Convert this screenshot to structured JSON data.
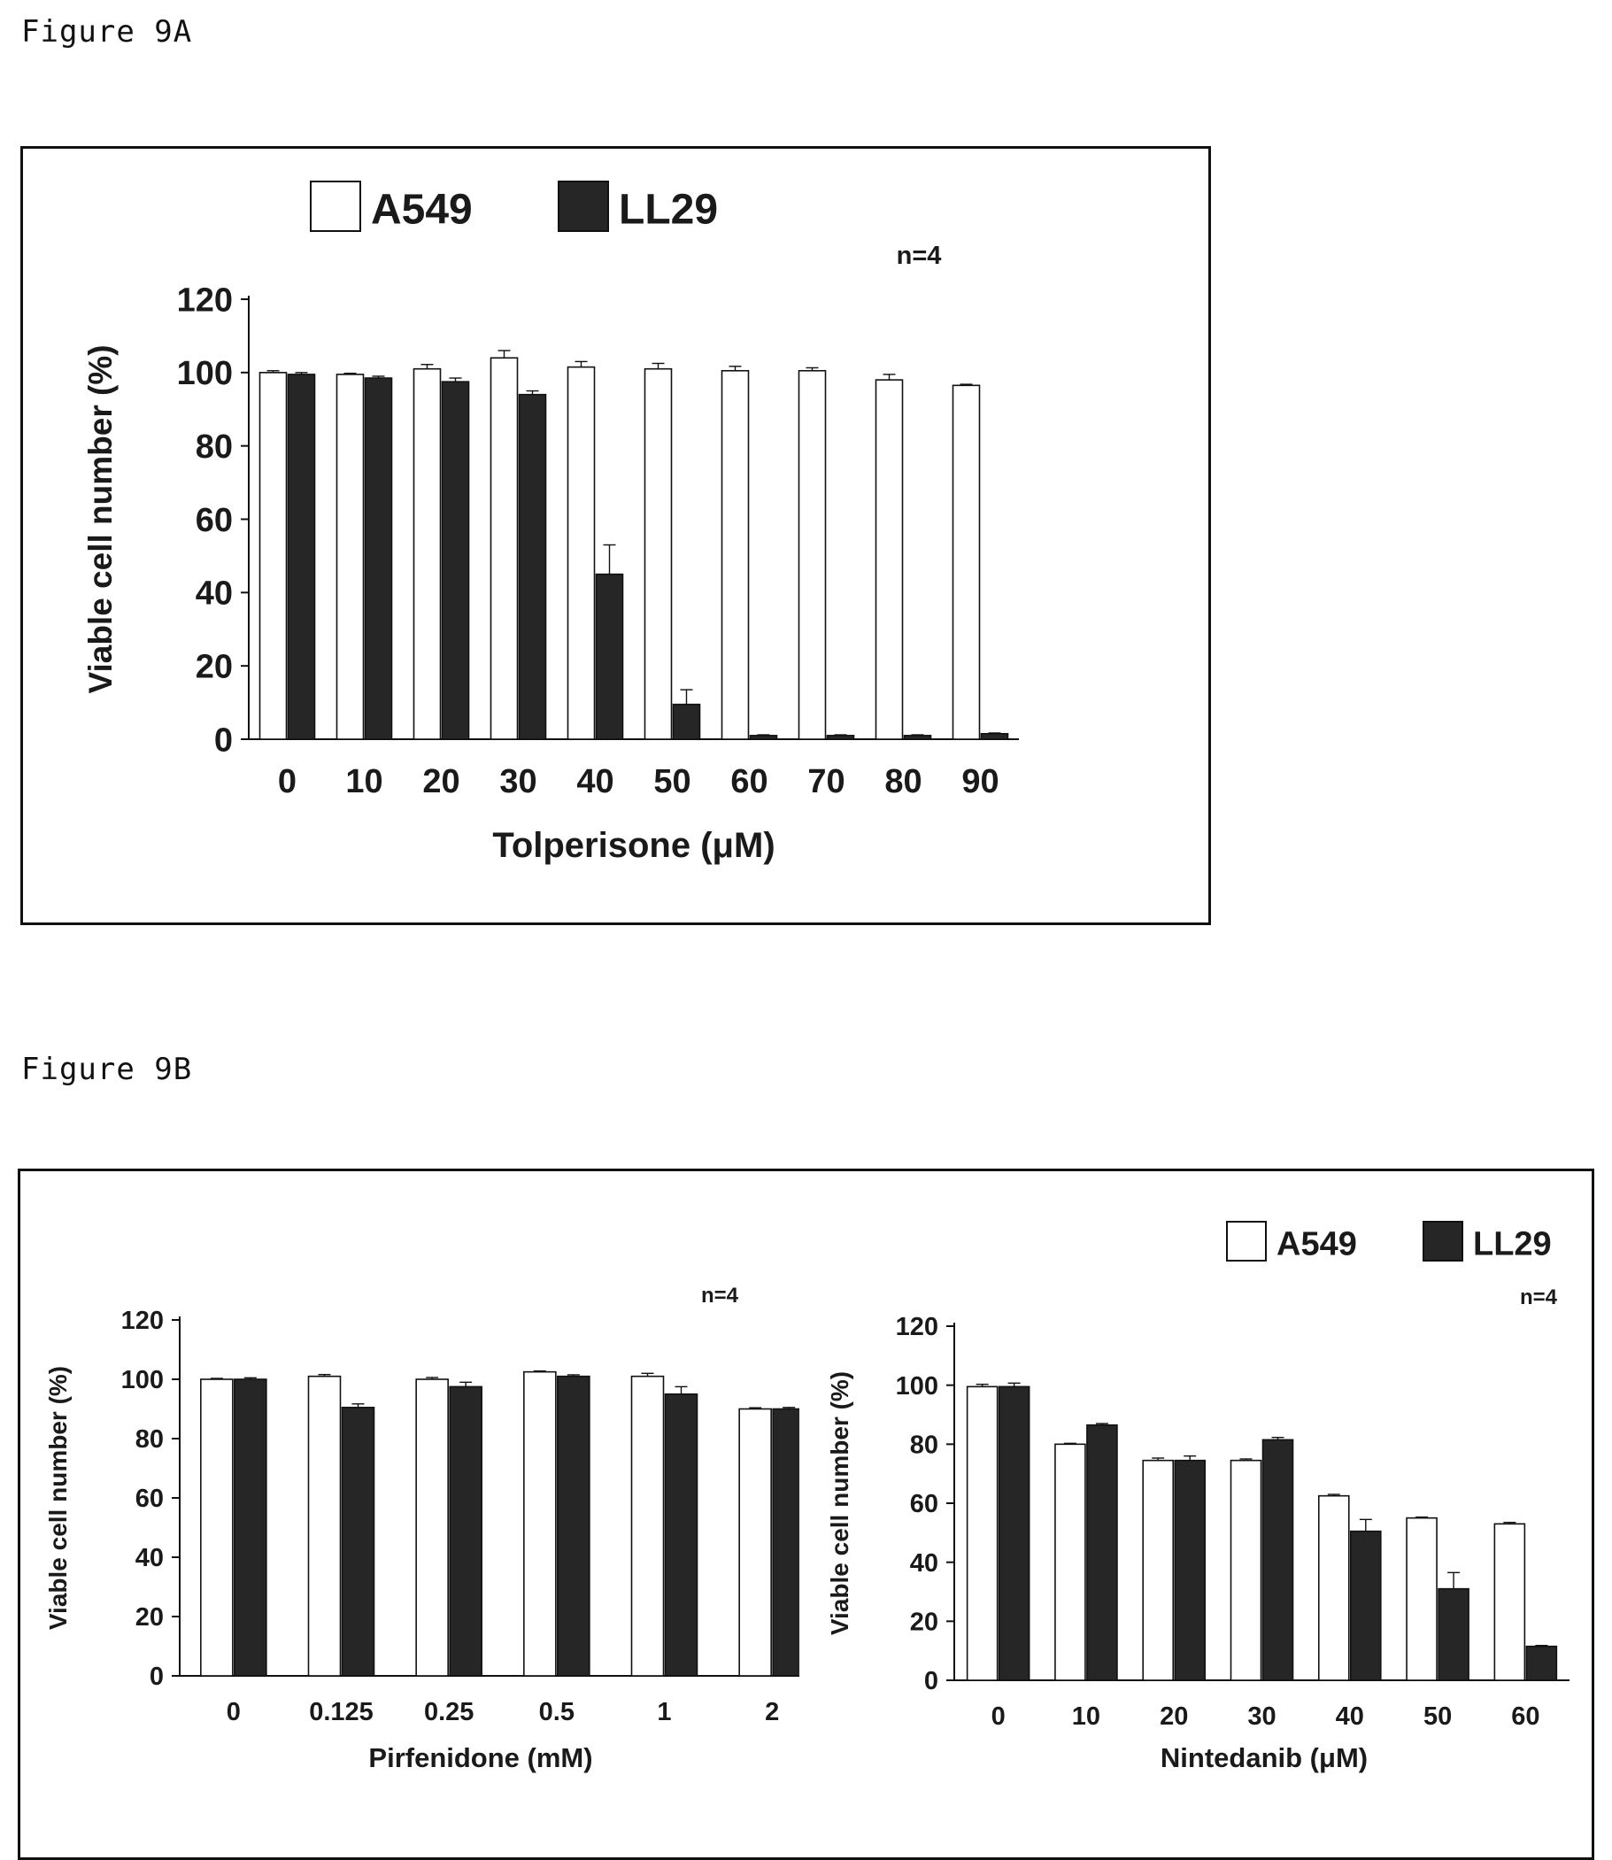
{
  "figures": [
    {
      "label": "Figure 9A"
    },
    {
      "label": "Figure 9B"
    }
  ],
  "colors": {
    "a549": "#ffffff",
    "ll29": "#262626",
    "axis": "#111111"
  },
  "chart_data": [
    {
      "type": "bar",
      "title": "",
      "xlabel": "Tolperisone (μM)",
      "ylabel": "Viable cell number (%)",
      "annotation": "n=4",
      "categories": [
        "0",
        "10",
        "20",
        "30",
        "40",
        "50",
        "60",
        "70",
        "80",
        "90"
      ],
      "yticks": [
        "0",
        "20",
        "40",
        "60",
        "80",
        "100",
        "120"
      ],
      "ylim": [
        0,
        120
      ],
      "legend": "top-left",
      "grid": false,
      "series": [
        {
          "name": "A549",
          "values": [
            100,
            99.5,
            101,
            104,
            101.5,
            101,
            100.5,
            100.5,
            98,
            96.5
          ],
          "errors": [
            0.5,
            0.3,
            1.2,
            2.0,
            1.5,
            1.5,
            1.2,
            0.8,
            1.5,
            0.3
          ]
        },
        {
          "name": "LL29",
          "values": [
            99.5,
            98.5,
            97.5,
            94,
            45,
            9.5,
            1,
            1,
            1,
            1.5
          ],
          "errors": [
            0.5,
            0.5,
            1.0,
            1.0,
            8.0,
            4.0,
            0.2,
            0.2,
            0.2,
            0.2
          ]
        }
      ]
    },
    {
      "type": "bar",
      "title": "",
      "xlabel": "Pirfenidone (mM)",
      "ylabel": "Viable cell number (%)",
      "annotation": "n=4",
      "categories": [
        "0",
        "0.125",
        "0.25",
        "0.5",
        "1",
        "2"
      ],
      "yticks": [
        "0",
        "20",
        "40",
        "60",
        "80",
        "100",
        "120"
      ],
      "ylim": [
        0,
        120
      ],
      "grid": false,
      "series": [
        {
          "name": "A549",
          "values": [
            100,
            101,
            100,
            102.5,
            101,
            90
          ],
          "errors": [
            0.3,
            0.6,
            0.6,
            0.3,
            1.0,
            0.4
          ]
        },
        {
          "name": "LL29",
          "values": [
            100,
            90.5,
            97.5,
            101,
            95,
            90
          ],
          "errors": [
            0.5,
            1.2,
            1.5,
            0.5,
            2.5,
            0.5
          ]
        }
      ]
    },
    {
      "type": "bar",
      "title": "",
      "xlabel": "Nintedanib (μM)",
      "ylabel": "Viable cell number (%)",
      "annotation": "n=4",
      "categories": [
        "0",
        "10",
        "20",
        "30",
        "40",
        "50",
        "60"
      ],
      "yticks": [
        "0",
        "20",
        "40",
        "60",
        "80",
        "100",
        "120"
      ],
      "ylim": [
        0,
        120
      ],
      "legend": "top-right",
      "grid": false,
      "series": [
        {
          "name": "A549",
          "values": [
            99.5,
            80,
            74.5,
            74.5,
            62.5,
            55,
            53
          ],
          "errors": [
            0.8,
            0.3,
            0.8,
            0.5,
            0.5,
            0.3,
            0.5
          ]
        },
        {
          "name": "LL29",
          "values": [
            99.5,
            86.5,
            74.5,
            81.5,
            50.5,
            31,
            11.5
          ],
          "errors": [
            1.2,
            0.5,
            1.5,
            0.8,
            4.0,
            5.5,
            0.3
          ]
        }
      ]
    }
  ]
}
